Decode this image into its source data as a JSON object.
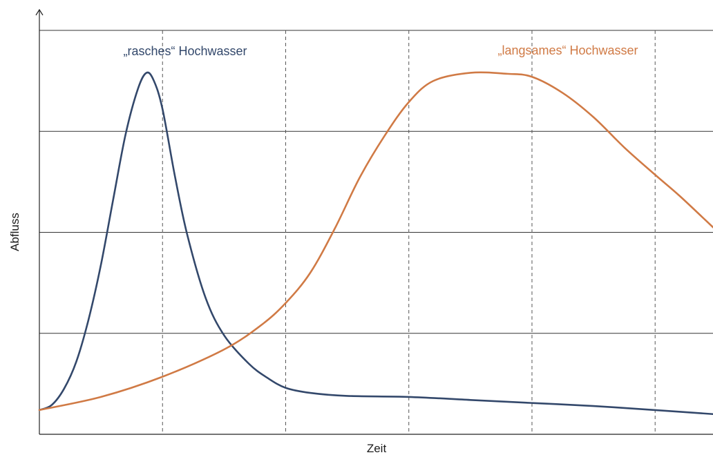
{
  "chart_data": {
    "type": "line",
    "xlabel": "Zeit",
    "ylabel": "Abfluss",
    "xlim": [
      0,
      5.47
    ],
    "ylim": [
      0,
      4
    ],
    "grid": {
      "horizontal": true,
      "vertical": true,
      "vertical_style": "dashed"
    },
    "series": [
      {
        "name": "„rasches“ Hochwasser",
        "color": "#33486b",
        "points": [
          [
            0.0,
            0.24
          ],
          [
            0.1,
            0.29
          ],
          [
            0.2,
            0.45
          ],
          [
            0.3,
            0.72
          ],
          [
            0.4,
            1.14
          ],
          [
            0.5,
            1.68
          ],
          [
            0.6,
            2.33
          ],
          [
            0.7,
            2.97
          ],
          [
            0.8,
            3.42
          ],
          [
            0.87,
            3.58
          ],
          [
            0.93,
            3.5
          ],
          [
            1.0,
            3.22
          ],
          [
            1.1,
            2.56
          ],
          [
            1.2,
            1.98
          ],
          [
            1.35,
            1.35
          ],
          [
            1.5,
            0.98
          ],
          [
            1.7,
            0.7
          ],
          [
            1.85,
            0.56
          ],
          [
            2.0,
            0.46
          ],
          [
            2.2,
            0.41
          ],
          [
            2.5,
            0.38
          ],
          [
            3.0,
            0.37
          ],
          [
            3.5,
            0.34
          ],
          [
            4.0,
            0.31
          ],
          [
            4.5,
            0.28
          ],
          [
            5.0,
            0.24
          ],
          [
            5.47,
            0.2
          ]
        ]
      },
      {
        "name": "„langsames“ Hochwasser",
        "color": "#d07a45",
        "points": [
          [
            0.0,
            0.24
          ],
          [
            0.5,
            0.37
          ],
          [
            1.0,
            0.57
          ],
          [
            1.5,
            0.84
          ],
          [
            1.8,
            1.08
          ],
          [
            2.0,
            1.3
          ],
          [
            2.2,
            1.6
          ],
          [
            2.4,
            2.04
          ],
          [
            2.6,
            2.54
          ],
          [
            2.8,
            2.95
          ],
          [
            3.0,
            3.29
          ],
          [
            3.2,
            3.5
          ],
          [
            3.5,
            3.58
          ],
          [
            3.8,
            3.57
          ],
          [
            4.0,
            3.54
          ],
          [
            4.25,
            3.38
          ],
          [
            4.5,
            3.14
          ],
          [
            4.75,
            2.84
          ],
          [
            5.0,
            2.57
          ],
          [
            5.2,
            2.36
          ],
          [
            5.47,
            2.05
          ]
        ]
      }
    ]
  }
}
